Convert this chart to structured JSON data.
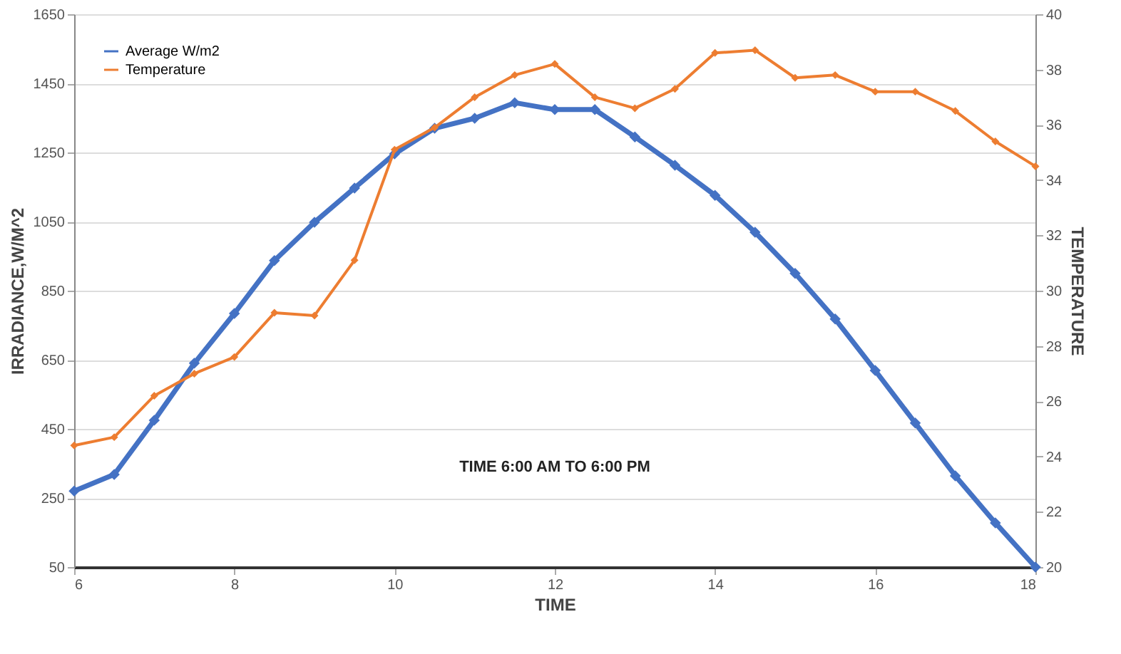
{
  "chart_data": {
    "type": "line",
    "xlabel": "TIME",
    "ylabel": "IRRADIANCE,W/M^2",
    "y2label": "TEMPERATURE",
    "x": [
      6,
      6.5,
      7,
      7.5,
      8,
      8.5,
      9,
      9.5,
      10,
      10.5,
      11,
      11.5,
      12,
      12.5,
      13,
      13.5,
      14,
      14.5,
      15,
      15.5,
      16,
      16.5,
      17,
      17.5,
      18
    ],
    "series": [
      {
        "name": "Average W/m2",
        "color": "#4472c4",
        "values": [
          270,
          318,
          475,
          640,
          784,
          937,
          1048,
          1147,
          1246,
          1320,
          1349,
          1394,
          1374,
          1374,
          1295,
          1213,
          1126,
          1019,
          900,
          768,
          619,
          467,
          314,
          178,
          50
        ]
      },
      {
        "name": "Temperature",
        "color": "#ed7d31",
        "axis": "y2",
        "values": [
          24.4,
          24.7,
          26.2,
          27.0,
          27.6,
          29.2,
          29.1,
          31.1,
          35.1,
          35.9,
          37.0,
          37.8,
          38.2,
          37.0,
          36.6,
          37.3,
          38.6,
          38.7,
          37.7,
          37.8,
          37.2,
          37.2,
          36.5,
          35.4,
          34.5
        ]
      }
    ],
    "xlim": [
      6,
      18
    ],
    "xticks": [
      6,
      8,
      10,
      12,
      14,
      16,
      18
    ],
    "ylim": [
      50,
      1650
    ],
    "yticks": [
      50,
      250,
      450,
      650,
      850,
      1050,
      1250,
      1450,
      1650
    ],
    "y2lim": [
      20,
      40
    ],
    "y2ticks": [
      20,
      22,
      24,
      26,
      28,
      30,
      32,
      34,
      36,
      38,
      40
    ],
    "annotations": [
      "TIME 6:00 AM TO 6:00 PM"
    ],
    "grid": "y",
    "legend": "top left",
    "marker": "diamond",
    "line_style": "solid"
  }
}
